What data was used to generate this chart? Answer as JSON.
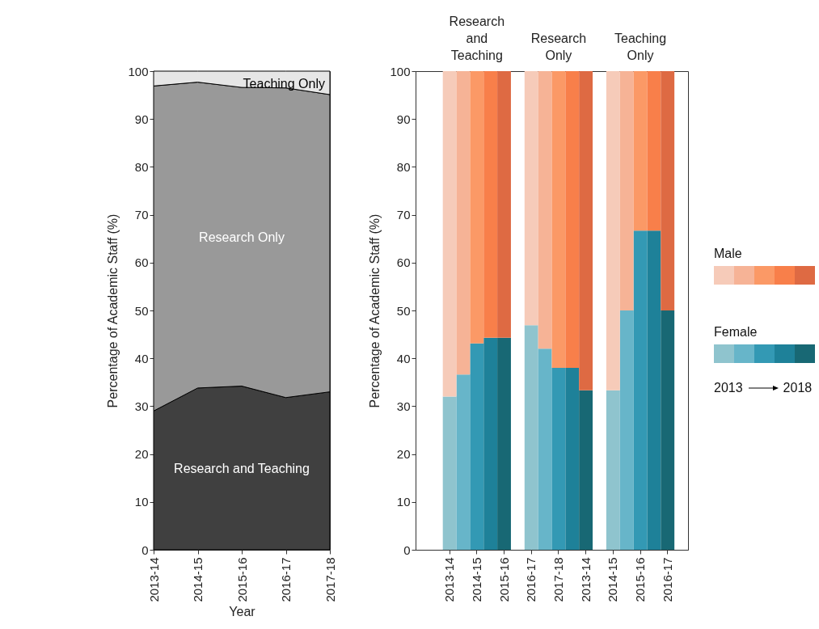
{
  "chart_data": [
    {
      "type": "area",
      "stacked": true,
      "xlabel": "Year",
      "ylabel": "Percentage of Academic Staff (%)",
      "categories": [
        "2013-14",
        "2014-15",
        "2015-16",
        "2016-17",
        "2017-18"
      ],
      "series": [
        {
          "name": "Research and Teaching",
          "color": "#404040",
          "values": [
            29,
            33.8,
            34.2,
            31.8,
            33
          ]
        },
        {
          "name": "Research Only",
          "color": "#999999",
          "values": [
            67.9,
            63.9,
            62.4,
            64.7,
            62.1
          ]
        },
        {
          "name": "Teaching Only",
          "color": "#e6e6e6",
          "values": [
            3.1,
            2.3,
            3.4,
            3.5,
            4.9
          ]
        }
      ],
      "ylim": [
        0,
        100
      ],
      "yticks": [
        0,
        10,
        20,
        30,
        40,
        50,
        60,
        70,
        80,
        90,
        100
      ],
      "grid": false,
      "legend": false
    },
    {
      "type": "bar",
      "stacked": true,
      "ylabel": "Percentage of Academic Staff (%)",
      "categories": [
        null,
        null,
        "2013-14",
        null,
        "2014-15",
        null,
        "2015-16",
        null,
        "2016-17",
        null,
        "2017-18",
        null,
        "2013-14",
        null,
        "2014-15",
        null,
        "2015-16",
        null,
        "2016-17",
        null
      ],
      "series": [
        {
          "name": "Female",
          "values": [
            null,
            null,
            32,
            36.6,
            43.1,
            44.3,
            44.3,
            null,
            46.9,
            42,
            38,
            38,
            33.3,
            null,
            33.3,
            50,
            66.7,
            66.7,
            50,
            null
          ],
          "colors": [
            null,
            null,
            "#8fc4ce",
            "#67b5c9",
            "#3399b4",
            "#1e8199",
            "#186874",
            null,
            "#8fc4ce",
            "#67b5c9",
            "#3399b4",
            "#1e8199",
            "#186874",
            null,
            "#8fc4ce",
            "#67b5c9",
            "#3399b4",
            "#1e8199",
            "#186874",
            null
          ]
        },
        {
          "name": "Male",
          "values": [
            null,
            null,
            68,
            63.4,
            56.9,
            55.7,
            55.7,
            null,
            53.1,
            58,
            62,
            62,
            66.7,
            null,
            66.7,
            50,
            33.3,
            33.3,
            50,
            null
          ],
          "colors": [
            null,
            null,
            "#f6cbb9",
            "#f6b396",
            "#fb9966",
            "#f87f4a",
            "#de6a43",
            null,
            "#f6cbb9",
            "#f6b396",
            "#fb9966",
            "#f87f4a",
            "#de6a43",
            null,
            "#f6cbb9",
            "#f6b396",
            "#fb9966",
            "#f87f4a",
            "#de6a43",
            null
          ]
        }
      ],
      "annotations": [
        "Research and Teaching",
        "Research Only",
        "Teaching Only",
        "2013",
        "2018"
      ],
      "ylim": [
        0,
        100
      ],
      "yticks": [
        0,
        10,
        20,
        30,
        40,
        50,
        60,
        70,
        80,
        90,
        100
      ],
      "grid": false,
      "legend": "right"
    }
  ]
}
